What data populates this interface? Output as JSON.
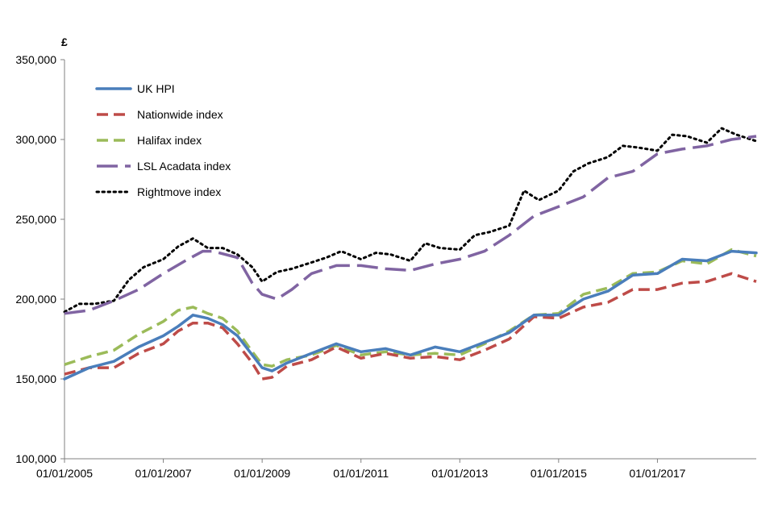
{
  "chart_data": {
    "type": "line",
    "title": "",
    "xlabel": "",
    "ylabel": "£",
    "ylim": [
      100000,
      350000
    ],
    "yticks": [
      100000,
      150000,
      200000,
      250000,
      300000,
      350000
    ],
    "ytick_labels": [
      "100,000",
      "150,000",
      "200,000",
      "250,000",
      "300,000",
      "350,000"
    ],
    "xlim": [
      2005.0,
      2019.0
    ],
    "xticks": [
      2005,
      2007,
      2009,
      2011,
      2013,
      2015,
      2017
    ],
    "xtick_labels": [
      "01/01/2005",
      "01/01/2007",
      "01/01/2009",
      "01/01/2011",
      "01/01/2013",
      "01/01/2015",
      "01/01/2017"
    ],
    "grid": false,
    "legend_position": "top-left",
    "series": [
      {
        "name": "UK HPI",
        "color": "#4a7ebb",
        "style": "solid",
        "x": [
          2005.0,
          2005.5,
          2006.0,
          2006.5,
          2007.0,
          2007.3,
          2007.6,
          2007.9,
          2008.2,
          2008.5,
          2008.8,
          2009.0,
          2009.2,
          2009.5,
          2010.0,
          2010.5,
          2011.0,
          2011.5,
          2012.0,
          2012.5,
          2013.0,
          2013.5,
          2014.0,
          2014.5,
          2015.0,
          2015.5,
          2016.0,
          2016.5,
          2017.0,
          2017.5,
          2018.0,
          2018.5,
          2019.0
        ],
        "values": [
          150000,
          157000,
          161000,
          170000,
          177000,
          183000,
          190000,
          188000,
          184000,
          177000,
          165000,
          157000,
          155000,
          160000,
          166000,
          172000,
          167000,
          169000,
          165000,
          170000,
          167000,
          173000,
          179000,
          190000,
          190000,
          200000,
          205000,
          215000,
          216000,
          225000,
          224000,
          230000,
          229000
        ]
      },
      {
        "name": "Nationwide index",
        "color": "#be4b48",
        "style": "dashed",
        "x": [
          2005.0,
          2005.5,
          2006.0,
          2006.5,
          2007.0,
          2007.3,
          2007.6,
          2007.9,
          2008.2,
          2008.5,
          2008.8,
          2009.0,
          2009.2,
          2009.5,
          2010.0,
          2010.5,
          2011.0,
          2011.5,
          2012.0,
          2012.5,
          2013.0,
          2013.5,
          2014.0,
          2014.5,
          2015.0,
          2015.5,
          2016.0,
          2016.5,
          2017.0,
          2017.5,
          2018.0,
          2018.5,
          2019.0
        ],
        "values": [
          153000,
          157000,
          157000,
          166000,
          172000,
          180000,
          185000,
          185000,
          182000,
          172000,
          160000,
          150000,
          151000,
          158000,
          162000,
          170000,
          163000,
          166000,
          163000,
          164000,
          162000,
          168000,
          175000,
          189000,
          188000,
          195000,
          198000,
          206000,
          206000,
          210000,
          211000,
          216000,
          211000
        ]
      },
      {
        "name": "Halifax index",
        "color": "#9bbb59",
        "style": "dashed",
        "x": [
          2005.0,
          2005.5,
          2006.0,
          2006.5,
          2007.0,
          2007.3,
          2007.6,
          2007.9,
          2008.2,
          2008.5,
          2008.8,
          2009.0,
          2009.2,
          2009.5,
          2010.0,
          2010.5,
          2011.0,
          2011.5,
          2012.0,
          2012.5,
          2013.0,
          2013.5,
          2014.0,
          2014.5,
          2015.0,
          2015.5,
          2016.0,
          2016.5,
          2017.0,
          2017.5,
          2018.0,
          2018.5,
          2019.0
        ],
        "values": [
          159000,
          164000,
          168000,
          178000,
          186000,
          193000,
          195000,
          191000,
          188000,
          180000,
          167000,
          159000,
          158000,
          162000,
          165000,
          171000,
          165000,
          167000,
          165000,
          166000,
          165000,
          172000,
          180000,
          190000,
          191000,
          203000,
          207000,
          216000,
          217000,
          224000,
          222000,
          231000,
          227000
        ]
      },
      {
        "name": "LSL Acadata index",
        "color": "#8064a2",
        "style": "long-dash",
        "x": [
          2005.0,
          2005.5,
          2006.0,
          2006.5,
          2007.0,
          2007.5,
          2007.8,
          2008.0,
          2008.5,
          2008.8,
          2009.0,
          2009.3,
          2009.6,
          2010.0,
          2010.5,
          2011.0,
          2011.5,
          2012.0,
          2012.5,
          2013.0,
          2013.5,
          2014.0,
          2014.5,
          2015.0,
          2015.5,
          2016.0,
          2016.5,
          2017.0,
          2017.5,
          2018.0,
          2018.5,
          2019.0
        ],
        "values": [
          191000,
          193000,
          199000,
          206000,
          216000,
          225000,
          230000,
          230000,
          226000,
          210000,
          203000,
          200000,
          206000,
          216000,
          221000,
          221000,
          219000,
          218000,
          222000,
          225000,
          230000,
          240000,
          252000,
          258000,
          264000,
          276000,
          280000,
          291000,
          294000,
          296000,
          300000,
          302000
        ]
      },
      {
        "name": "Rightmove index",
        "color": "#000000",
        "style": "dotted",
        "x": [
          2005.0,
          2005.3,
          2005.6,
          2006.0,
          2006.3,
          2006.6,
          2007.0,
          2007.3,
          2007.6,
          2007.9,
          2008.2,
          2008.5,
          2008.8,
          2009.0,
          2009.3,
          2009.6,
          2010.0,
          2010.3,
          2010.6,
          2011.0,
          2011.3,
          2011.6,
          2012.0,
          2012.3,
          2012.6,
          2013.0,
          2013.3,
          2013.6,
          2014.0,
          2014.3,
          2014.6,
          2015.0,
          2015.3,
          2015.6,
          2016.0,
          2016.3,
          2016.6,
          2017.0,
          2017.3,
          2017.6,
          2018.0,
          2018.3,
          2018.6,
          2019.0
        ],
        "values": [
          192000,
          197000,
          197000,
          199000,
          212000,
          220000,
          225000,
          233000,
          238000,
          232000,
          232000,
          228000,
          220000,
          211000,
          217000,
          219000,
          223000,
          226000,
          230000,
          225000,
          229000,
          228000,
          224000,
          235000,
          232000,
          231000,
          240000,
          242000,
          246000,
          268000,
          262000,
          268000,
          280000,
          285000,
          289000,
          296000,
          295000,
          293000,
          303000,
          302000,
          298000,
          307000,
          303000,
          299000
        ]
      }
    ]
  }
}
